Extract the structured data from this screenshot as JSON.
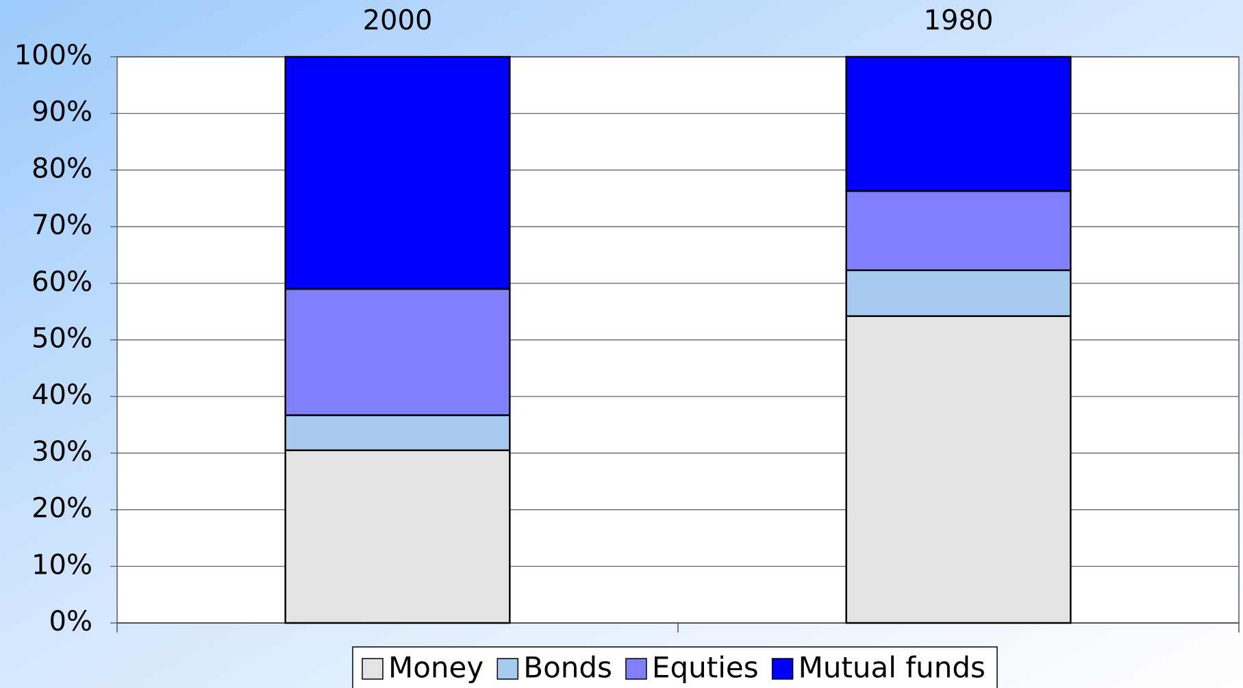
{
  "chart_data": {
    "type": "stacked_bar",
    "categories": [
      "2000",
      "1980"
    ],
    "series": [
      {
        "name": "Money",
        "color": "#e3e3e3",
        "values": [
          30.5,
          54.2
        ]
      },
      {
        "name": "Bonds",
        "color": "#a6caf0",
        "values": [
          6.2,
          8.1
        ]
      },
      {
        "name": "Equties",
        "color": "#8080ff",
        "values": [
          22.3,
          14
        ]
      },
      {
        "name": "Mutual funds",
        "color": "#0000ff",
        "values": [
          41,
          23.7
        ]
      }
    ],
    "ylim": [
      0,
      100
    ],
    "yticks": [
      {
        "value": 0,
        "label": "0%"
      },
      {
        "value": 10,
        "label": "10%"
      },
      {
        "value": 20,
        "label": "20%"
      },
      {
        "value": 30,
        "label": "30%"
      },
      {
        "value": 40,
        "label": "40%"
      },
      {
        "value": 50,
        "label": "50%"
      },
      {
        "value": 60,
        "label": "60%"
      },
      {
        "value": 70,
        "label": "70%"
      },
      {
        "value": 80,
        "label": "80%"
      },
      {
        "value": 90,
        "label": "90%"
      },
      {
        "value": 100,
        "label": "100%"
      }
    ],
    "grid": true,
    "legend": "bottom"
  }
}
